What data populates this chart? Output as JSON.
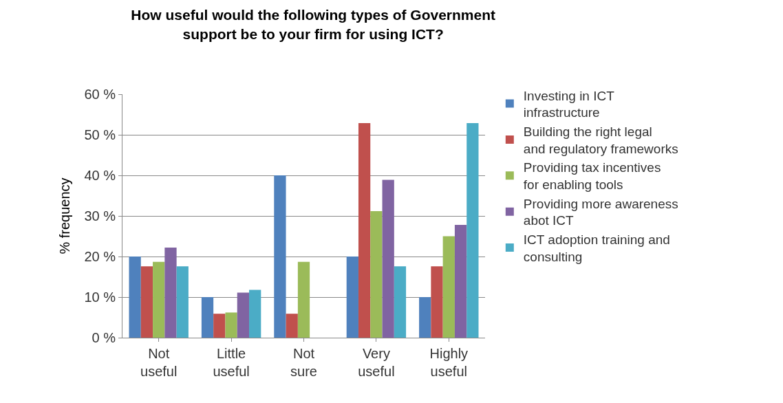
{
  "chart_data": {
    "type": "bar",
    "title": "How useful would the following types of Government\nsupport be to your firm for using ICT?",
    "ylabel": "% frequency",
    "categories": [
      "Not useful",
      "Little useful",
      "Not sure",
      "Very useful",
      "Highly useful"
    ],
    "series": [
      {
        "name": "Investing in ICT infrastructure",
        "color": "#4f81bd",
        "values": [
          20,
          10,
          40,
          20,
          10
        ]
      },
      {
        "name": "Building the right legal and regulatory frameworks",
        "color": "#c0504d",
        "values": [
          17.6,
          5.9,
          5.9,
          52.9,
          17.6
        ]
      },
      {
        "name": "Providing tax incentives for enabling tools",
        "color": "#9bbb59",
        "values": [
          18.7,
          6.2,
          18.7,
          31.2,
          25
        ]
      },
      {
        "name": "Providing more awareness abot ICT",
        "color": "#8064a2",
        "values": [
          22.2,
          11.1,
          0,
          38.9,
          27.8
        ]
      },
      {
        "name": "ICT adoption training and consulting",
        "color": "#4bacc6",
        "values": [
          17.6,
          11.8,
          0,
          17.6,
          52.9
        ]
      }
    ],
    "ylim": [
      0,
      60
    ],
    "yticks": [
      {
        "value": 0,
        "label": "0 %"
      },
      {
        "value": 10,
        "label": "10 %"
      },
      {
        "value": 20,
        "label": "20 %"
      },
      {
        "value": 30,
        "label": "30 %"
      },
      {
        "value": 40,
        "label": "40 %"
      },
      {
        "value": 50,
        "label": "50 %"
      },
      {
        "value": 60,
        "label": "60 %"
      }
    ],
    "grid": "y",
    "legend": "right"
  }
}
